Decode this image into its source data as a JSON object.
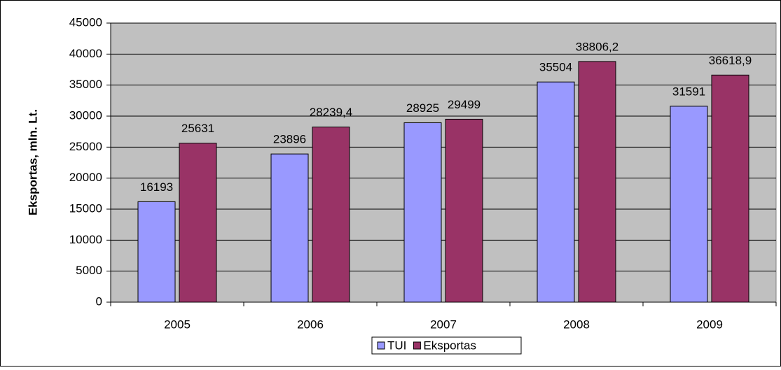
{
  "chart_data": {
    "type": "bar",
    "y_label": "Eksportas, mln. Lt.",
    "categories": [
      "2005",
      "2006",
      "2007",
      "2008",
      "2009"
    ],
    "series": [
      {
        "name": "TUI",
        "color": "#9999ff",
        "values": [
          16193,
          23896,
          28925,
          35504,
          31591
        ]
      },
      {
        "name": "Eksportas",
        "color": "#993366",
        "values": [
          25631,
          28239.4,
          29499,
          38806.2,
          36618.9
        ],
        "value_labels": [
          "25631",
          "28239,4",
          "29499",
          "38806,2",
          "36618,9"
        ]
      }
    ],
    "ylim": [
      0,
      45000
    ],
    "yticks": [
      0,
      5000,
      10000,
      15000,
      20000,
      25000,
      30000,
      35000,
      40000,
      45000
    ],
    "grid": true,
    "legend": "bottom"
  }
}
